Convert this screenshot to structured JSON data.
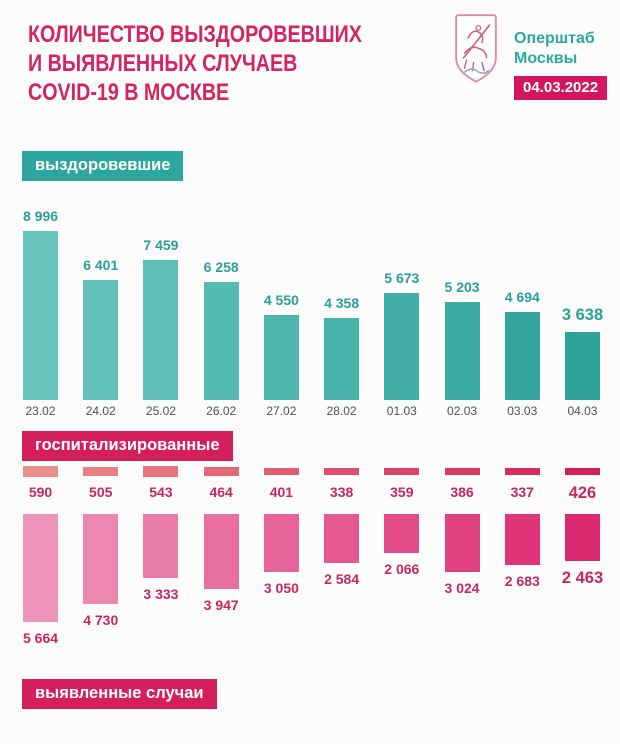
{
  "header": {
    "title_lines": [
      "КОЛИЧЕСТВО ВЫЗДОРОВЕВШИХ",
      "И ВЫЯВЛЕННЫХ СЛУЧАЕВ",
      "COVID-19 В МОСКВЕ"
    ],
    "org_name_lines": [
      "Оперштаб",
      "Москвы"
    ],
    "date_badge": "04.03.2022",
    "logo_icon": "moscow-coat-of-arms"
  },
  "sections": {
    "recovered_label": "выздоровевшие",
    "hospitalized_label": "госпитализированные",
    "detected_label": "выявленные случаи"
  },
  "colors": {
    "title_crimson": "#d4255e",
    "badge_crimson": "#d4165c",
    "section_teal": "#2ca69e",
    "section_crimson": "#d51e5c",
    "org_teal": "#2ba8a0",
    "teal_value_text": "#2a9e97",
    "crimson_value_text": "#c5285c",
    "date_text": "#4f4f4f",
    "background": "#fcfcfc",
    "recovered_bar_gradient": [
      "#69c6bd",
      "#2ea29a"
    ],
    "hospitalized_bar_gradient": [
      "#eb8d88",
      "#d42057"
    ],
    "detected_bar_gradient": [
      "#ee93b9",
      "#dc2a70"
    ]
  },
  "chart_data": [
    {
      "id": "recovered",
      "type": "bar",
      "title": "выздоровевшие",
      "direction": "up",
      "categories": [
        "23.02",
        "24.02",
        "25.02",
        "26.02",
        "27.02",
        "28.02",
        "01.03",
        "02.03",
        "03.03",
        "04.03"
      ],
      "values": [
        8996,
        6401,
        7459,
        6258,
        4550,
        4358,
        5673,
        5203,
        4694,
        3638
      ],
      "value_labels": [
        "8 996",
        "6 401",
        "7 459",
        "6 258",
        "4 550",
        "4 358",
        "5 673",
        "5 203",
        "4 694",
        "3 638"
      ],
      "bar_color_gradient": [
        "#69c6bd",
        "#2ea29a"
      ],
      "ylim": [
        0,
        8996
      ],
      "grid": false,
      "legend": "none"
    },
    {
      "id": "hospitalized",
      "type": "bar",
      "title": "госпитализированные",
      "direction": "strip",
      "categories": [
        "23.02",
        "24.02",
        "25.02",
        "26.02",
        "27.02",
        "28.02",
        "01.03",
        "02.03",
        "03.03",
        "04.03"
      ],
      "values": [
        590,
        505,
        543,
        464,
        401,
        338,
        359,
        386,
        337,
        426
      ],
      "value_labels": [
        "590",
        "505",
        "543",
        "464",
        "401",
        "338",
        "359",
        "386",
        "337",
        "426"
      ],
      "bar_color_gradient": [
        "#eb8d88",
        "#d42057"
      ],
      "ylim": [
        0,
        590
      ],
      "grid": false,
      "legend": "none"
    },
    {
      "id": "detected",
      "type": "bar",
      "title": "выявленные случаи",
      "direction": "down",
      "categories": [
        "23.02",
        "24.02",
        "25.02",
        "26.02",
        "27.02",
        "28.02",
        "01.03",
        "02.03",
        "03.03",
        "04.03"
      ],
      "values": [
        5664,
        4730,
        3333,
        3947,
        3050,
        2584,
        2066,
        3024,
        2683,
        2463
      ],
      "value_labels": [
        "5 664",
        "4 730",
        "3 333",
        "3 947",
        "3 050",
        "2 584",
        "2 066",
        "3 024",
        "2 683",
        "2 463"
      ],
      "bar_color_gradient": [
        "#ee93b9",
        "#dc2a70"
      ],
      "ylim": [
        0,
        5664
      ],
      "grid": false,
      "legend": "none"
    }
  ]
}
